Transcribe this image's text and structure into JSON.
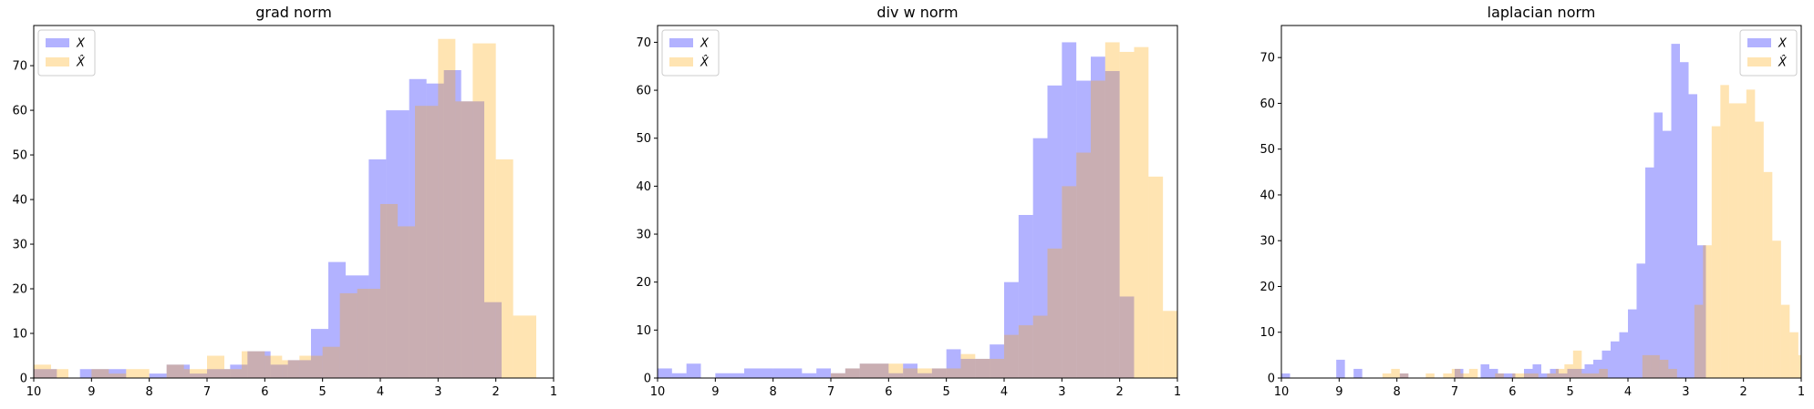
{
  "colors": {
    "x": "#0000ff",
    "xhat": "#ffa500",
    "bar_alpha": 0.3
  },
  "chart_data": [
    {
      "type": "bar",
      "title": "grad norm",
      "xlabel": "",
      "ylabel": "",
      "xlim": [
        10,
        1
      ],
      "ylim": [
        0,
        79
      ],
      "xticks": [
        10,
        9,
        8,
        7,
        6,
        5,
        4,
        3,
        2,
        1
      ],
      "yticks": [
        0,
        10,
        20,
        30,
        40,
        50,
        60,
        70
      ],
      "legend": {
        "position": "top-left",
        "labels": [
          "X",
          "X̂"
        ]
      },
      "series": [
        {
          "name": "X",
          "bins": [
            [
              10,
              9.6,
              2
            ],
            [
              9.6,
              9.2,
              0
            ],
            [
              9.2,
              8.8,
              2
            ],
            [
              8.8,
              8.4,
              2
            ],
            [
              8.4,
              8.0,
              0
            ],
            [
              8.0,
              7.7,
              1
            ],
            [
              7.7,
              7.3,
              3
            ],
            [
              7.3,
              7.0,
              1
            ],
            [
              7.0,
              6.6,
              2
            ],
            [
              6.6,
              6.3,
              3
            ],
            [
              6.3,
              5.9,
              6
            ],
            [
              5.9,
              5.6,
              3
            ],
            [
              5.6,
              5.2,
              4
            ],
            [
              5.2,
              4.9,
              11
            ],
            [
              4.9,
              4.6,
              26
            ],
            [
              4.6,
              4.2,
              23
            ],
            [
              4.2,
              3.9,
              49
            ],
            [
              3.9,
              3.5,
              60
            ],
            [
              3.5,
              3.2,
              67
            ],
            [
              3.2,
              2.9,
              66
            ],
            [
              2.9,
              2.6,
              69
            ],
            [
              2.6,
              2.2,
              62
            ],
            [
              2.2,
              1.9,
              17
            ]
          ]
        },
        {
          "name": "X̂",
          "bins": [
            [
              10,
              9.7,
              3
            ],
            [
              9.7,
              9.4,
              2
            ],
            [
              9.4,
              9.0,
              0
            ],
            [
              9.0,
              8.7,
              2
            ],
            [
              8.7,
              8.4,
              1
            ],
            [
              8.4,
              8.0,
              2
            ],
            [
              8.0,
              7.7,
              0
            ],
            [
              7.7,
              7.4,
              3
            ],
            [
              7.4,
              7.0,
              2
            ],
            [
              7.0,
              6.7,
              5
            ],
            [
              6.7,
              6.4,
              2
            ],
            [
              6.4,
              6.0,
              6
            ],
            [
              6.0,
              5.7,
              5
            ],
            [
              5.7,
              5.4,
              4
            ],
            [
              5.4,
              5.0,
              5
            ],
            [
              5.0,
              4.7,
              7
            ],
            [
              4.7,
              4.4,
              19
            ],
            [
              4.4,
              4.0,
              20
            ],
            [
              4.0,
              3.7,
              39
            ],
            [
              3.7,
              3.4,
              34
            ],
            [
              3.4,
              3.0,
              61
            ],
            [
              3.0,
              2.7,
              76
            ],
            [
              2.7,
              2.4,
              62
            ],
            [
              2.4,
              2.0,
              75
            ],
            [
              2.0,
              1.7,
              49
            ],
            [
              1.7,
              1.3,
              14
            ]
          ]
        }
      ]
    },
    {
      "type": "bar",
      "title": "div w norm",
      "xlabel": "",
      "ylabel": "",
      "xlim": [
        10,
        1
      ],
      "ylim": [
        0,
        73.5
      ],
      "xticks": [
        10,
        9,
        8,
        7,
        6,
        5,
        4,
        3,
        2,
        1
      ],
      "yticks": [
        0,
        10,
        20,
        30,
        40,
        50,
        60,
        70
      ],
      "legend": {
        "position": "top-left",
        "labels": [
          "X",
          "X̂"
        ]
      },
      "series": [
        {
          "name": "X",
          "bins": [
            [
              10,
              9.75,
              2
            ],
            [
              9.75,
              9.5,
              1
            ],
            [
              9.5,
              9.25,
              3
            ],
            [
              9.25,
              9.0,
              0
            ],
            [
              9.0,
              8.5,
              1
            ],
            [
              8.5,
              8.0,
              2
            ],
            [
              8.0,
              7.5,
              2
            ],
            [
              7.5,
              7.25,
              1
            ],
            [
              7.25,
              7.0,
              2
            ],
            [
              7.0,
              6.75,
              1
            ],
            [
              6.75,
              6.5,
              2
            ],
            [
              6.5,
              6.0,
              3
            ],
            [
              6.0,
              5.75,
              1
            ],
            [
              5.75,
              5.5,
              3
            ],
            [
              5.5,
              5.25,
              1
            ],
            [
              5.25,
              5.0,
              2
            ],
            [
              5.0,
              4.75,
              6
            ],
            [
              4.75,
              4.5,
              4
            ],
            [
              4.5,
              4.25,
              4
            ],
            [
              4.25,
              4.0,
              7
            ],
            [
              4.0,
              3.75,
              20
            ],
            [
              3.75,
              3.5,
              34
            ],
            [
              3.5,
              3.25,
              50
            ],
            [
              3.25,
              3.0,
              61
            ],
            [
              3.0,
              2.75,
              70
            ],
            [
              2.75,
              2.5,
              62
            ],
            [
              2.5,
              2.25,
              67
            ],
            [
              2.25,
              2.0,
              64
            ],
            [
              2.0,
              1.75,
              17
            ]
          ]
        },
        {
          "name": "X̂",
          "bins": [
            [
              7.0,
              6.75,
              1
            ],
            [
              6.75,
              6.5,
              2
            ],
            [
              6.5,
              6.25,
              3
            ],
            [
              6.25,
              5.75,
              3
            ],
            [
              5.75,
              5.25,
              2
            ],
            [
              5.25,
              4.75,
              2
            ],
            [
              4.75,
              4.5,
              5
            ],
            [
              4.5,
              4.0,
              4
            ],
            [
              4.0,
              3.75,
              9
            ],
            [
              3.75,
              3.5,
              11
            ],
            [
              3.5,
              3.25,
              13
            ],
            [
              3.25,
              3.0,
              27
            ],
            [
              3.0,
              2.75,
              40
            ],
            [
              2.75,
              2.5,
              47
            ],
            [
              2.5,
              2.25,
              62
            ],
            [
              2.25,
              2.0,
              70
            ],
            [
              2.0,
              1.75,
              68
            ],
            [
              1.75,
              1.5,
              69
            ],
            [
              1.5,
              1.25,
              42
            ],
            [
              1.25,
              1.0,
              14
            ]
          ]
        }
      ]
    },
    {
      "type": "bar",
      "title": "laplacian norm",
      "xlabel": "",
      "ylabel": "",
      "xlim": [
        10,
        1
      ],
      "ylim": [
        0,
        77
      ],
      "xticks": [
        10,
        9,
        8,
        7,
        6,
        5,
        4,
        3,
        2,
        1
      ],
      "yticks": [
        0,
        10,
        20,
        30,
        40,
        50,
        60,
        70
      ],
      "legend": {
        "position": "top-right",
        "labels": [
          "X",
          "X̂"
        ]
      },
      "series": [
        {
          "name": "X",
          "bins": [
            [
              10,
              9.85,
              1
            ],
            [
              9.85,
              9.05,
              0
            ],
            [
              9.05,
              8.9,
              4
            ],
            [
              8.9,
              8.75,
              0
            ],
            [
              8.75,
              8.6,
              2
            ],
            [
              8.6,
              7.95,
              0
            ],
            [
              7.95,
              7.8,
              1
            ],
            [
              7.8,
              7.0,
              0
            ],
            [
              7.0,
              6.85,
              2
            ],
            [
              6.85,
              6.55,
              0
            ],
            [
              6.55,
              6.4,
              3
            ],
            [
              6.4,
              6.25,
              2
            ],
            [
              6.25,
              6.1,
              1
            ],
            [
              6.1,
              5.95,
              1
            ],
            [
              5.95,
              5.8,
              0
            ],
            [
              5.8,
              5.65,
              2
            ],
            [
              5.65,
              5.5,
              3
            ],
            [
              5.5,
              5.35,
              1
            ],
            [
              5.35,
              5.2,
              2
            ],
            [
              5.2,
              5.05,
              1
            ],
            [
              5.05,
              4.9,
              2
            ],
            [
              4.9,
              4.75,
              2
            ],
            [
              4.75,
              4.6,
              3
            ],
            [
              4.6,
              4.45,
              4
            ],
            [
              4.45,
              4.3,
              6
            ],
            [
              4.3,
              4.15,
              8
            ],
            [
              4.15,
              4.0,
              10
            ],
            [
              4.0,
              3.85,
              15
            ],
            [
              3.85,
              3.7,
              25
            ],
            [
              3.7,
              3.55,
              46
            ],
            [
              3.55,
              3.4,
              58
            ],
            [
              3.4,
              3.25,
              54
            ],
            [
              3.25,
              3.1,
              73
            ],
            [
              3.1,
              2.95,
              69
            ],
            [
              2.95,
              2.8,
              62
            ],
            [
              2.8,
              2.65,
              29
            ]
          ]
        },
        {
          "name": "X̂",
          "bins": [
            [
              8.25,
              8.1,
              1
            ],
            [
              8.1,
              7.95,
              2
            ],
            [
              7.95,
              7.8,
              1
            ],
            [
              7.5,
              7.35,
              1
            ],
            [
              7.2,
              7.05,
              1
            ],
            [
              7.05,
              6.9,
              2
            ],
            [
              6.9,
              6.75,
              1
            ],
            [
              6.75,
              6.6,
              2
            ],
            [
              6.3,
              6.15,
              1
            ],
            [
              6.0,
              5.85,
              1
            ],
            [
              5.85,
              5.7,
              1
            ],
            [
              5.7,
              5.55,
              1
            ],
            [
              5.4,
              5.25,
              1
            ],
            [
              5.25,
              5.1,
              2
            ],
            [
              5.1,
              4.95,
              3
            ],
            [
              4.95,
              4.8,
              6
            ],
            [
              4.8,
              4.65,
              1
            ],
            [
              4.65,
              4.5,
              1
            ],
            [
              4.5,
              4.35,
              2
            ],
            [
              3.75,
              3.6,
              5
            ],
            [
              3.6,
              3.45,
              5
            ],
            [
              3.45,
              3.3,
              4
            ],
            [
              3.3,
              3.15,
              2
            ],
            [
              2.85,
              2.7,
              16
            ],
            [
              2.7,
              2.55,
              29
            ],
            [
              2.55,
              2.4,
              55
            ],
            [
              2.4,
              2.25,
              64
            ],
            [
              2.25,
              2.1,
              60
            ],
            [
              2.1,
              1.95,
              60
            ],
            [
              1.95,
              1.8,
              63
            ],
            [
              1.8,
              1.65,
              56
            ],
            [
              1.65,
              1.5,
              45
            ],
            [
              1.5,
              1.35,
              30
            ],
            [
              1.35,
              1.2,
              16
            ],
            [
              1.2,
              1.05,
              10
            ],
            [
              1.05,
              1.0,
              5
            ]
          ]
        }
      ]
    }
  ]
}
